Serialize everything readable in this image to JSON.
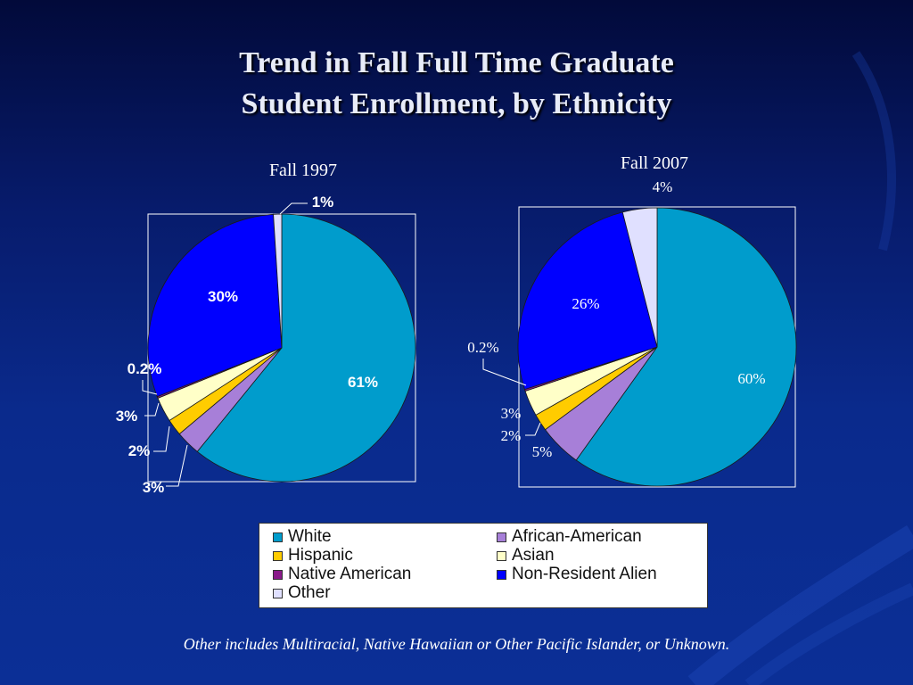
{
  "slide": {
    "title_line1": "Trend in Fall Full Time Graduate",
    "title_line2": "Student Enrollment, by Ethnicity",
    "footnote": "Other includes Multiracial, Native Hawaiian or Other Pacific Islander, or Unknown."
  },
  "colors": {
    "White": "#009ccc",
    "African-American": "#a77fd8",
    "Hispanic": "#ffcc00",
    "Asian": "#ffffc8",
    "Native American": "#8a1a8a",
    "Non-Resident Alien": "#0000ff",
    "Other": "#e0e0ff"
  },
  "legend": {
    "items": [
      "White",
      "African-American",
      "Hispanic",
      "Asian",
      "Native American",
      "Non-Resident Alien",
      "Other"
    ]
  },
  "chart_data": [
    {
      "type": "pie",
      "title": "Fall 1997",
      "categories": [
        "White",
        "African-American",
        "Hispanic",
        "Asian",
        "Native American",
        "Non-Resident Alien",
        "Other"
      ],
      "values": [
        61,
        3,
        2,
        3,
        0.2,
        30,
        1
      ],
      "labels": [
        "61%",
        "3%",
        "2%",
        "3%",
        "0.2%",
        "30%",
        "1%"
      ]
    },
    {
      "type": "pie",
      "title": "Fall 2007",
      "categories": [
        "White",
        "African-American",
        "Hispanic",
        "Asian",
        "Native American",
        "Non-Resident Alien",
        "Other"
      ],
      "values": [
        60,
        5,
        2,
        3,
        0.2,
        26,
        4
      ],
      "labels": [
        "60%",
        "5%",
        "2%",
        "3%",
        "0.2%",
        "26%",
        "4%"
      ]
    }
  ]
}
